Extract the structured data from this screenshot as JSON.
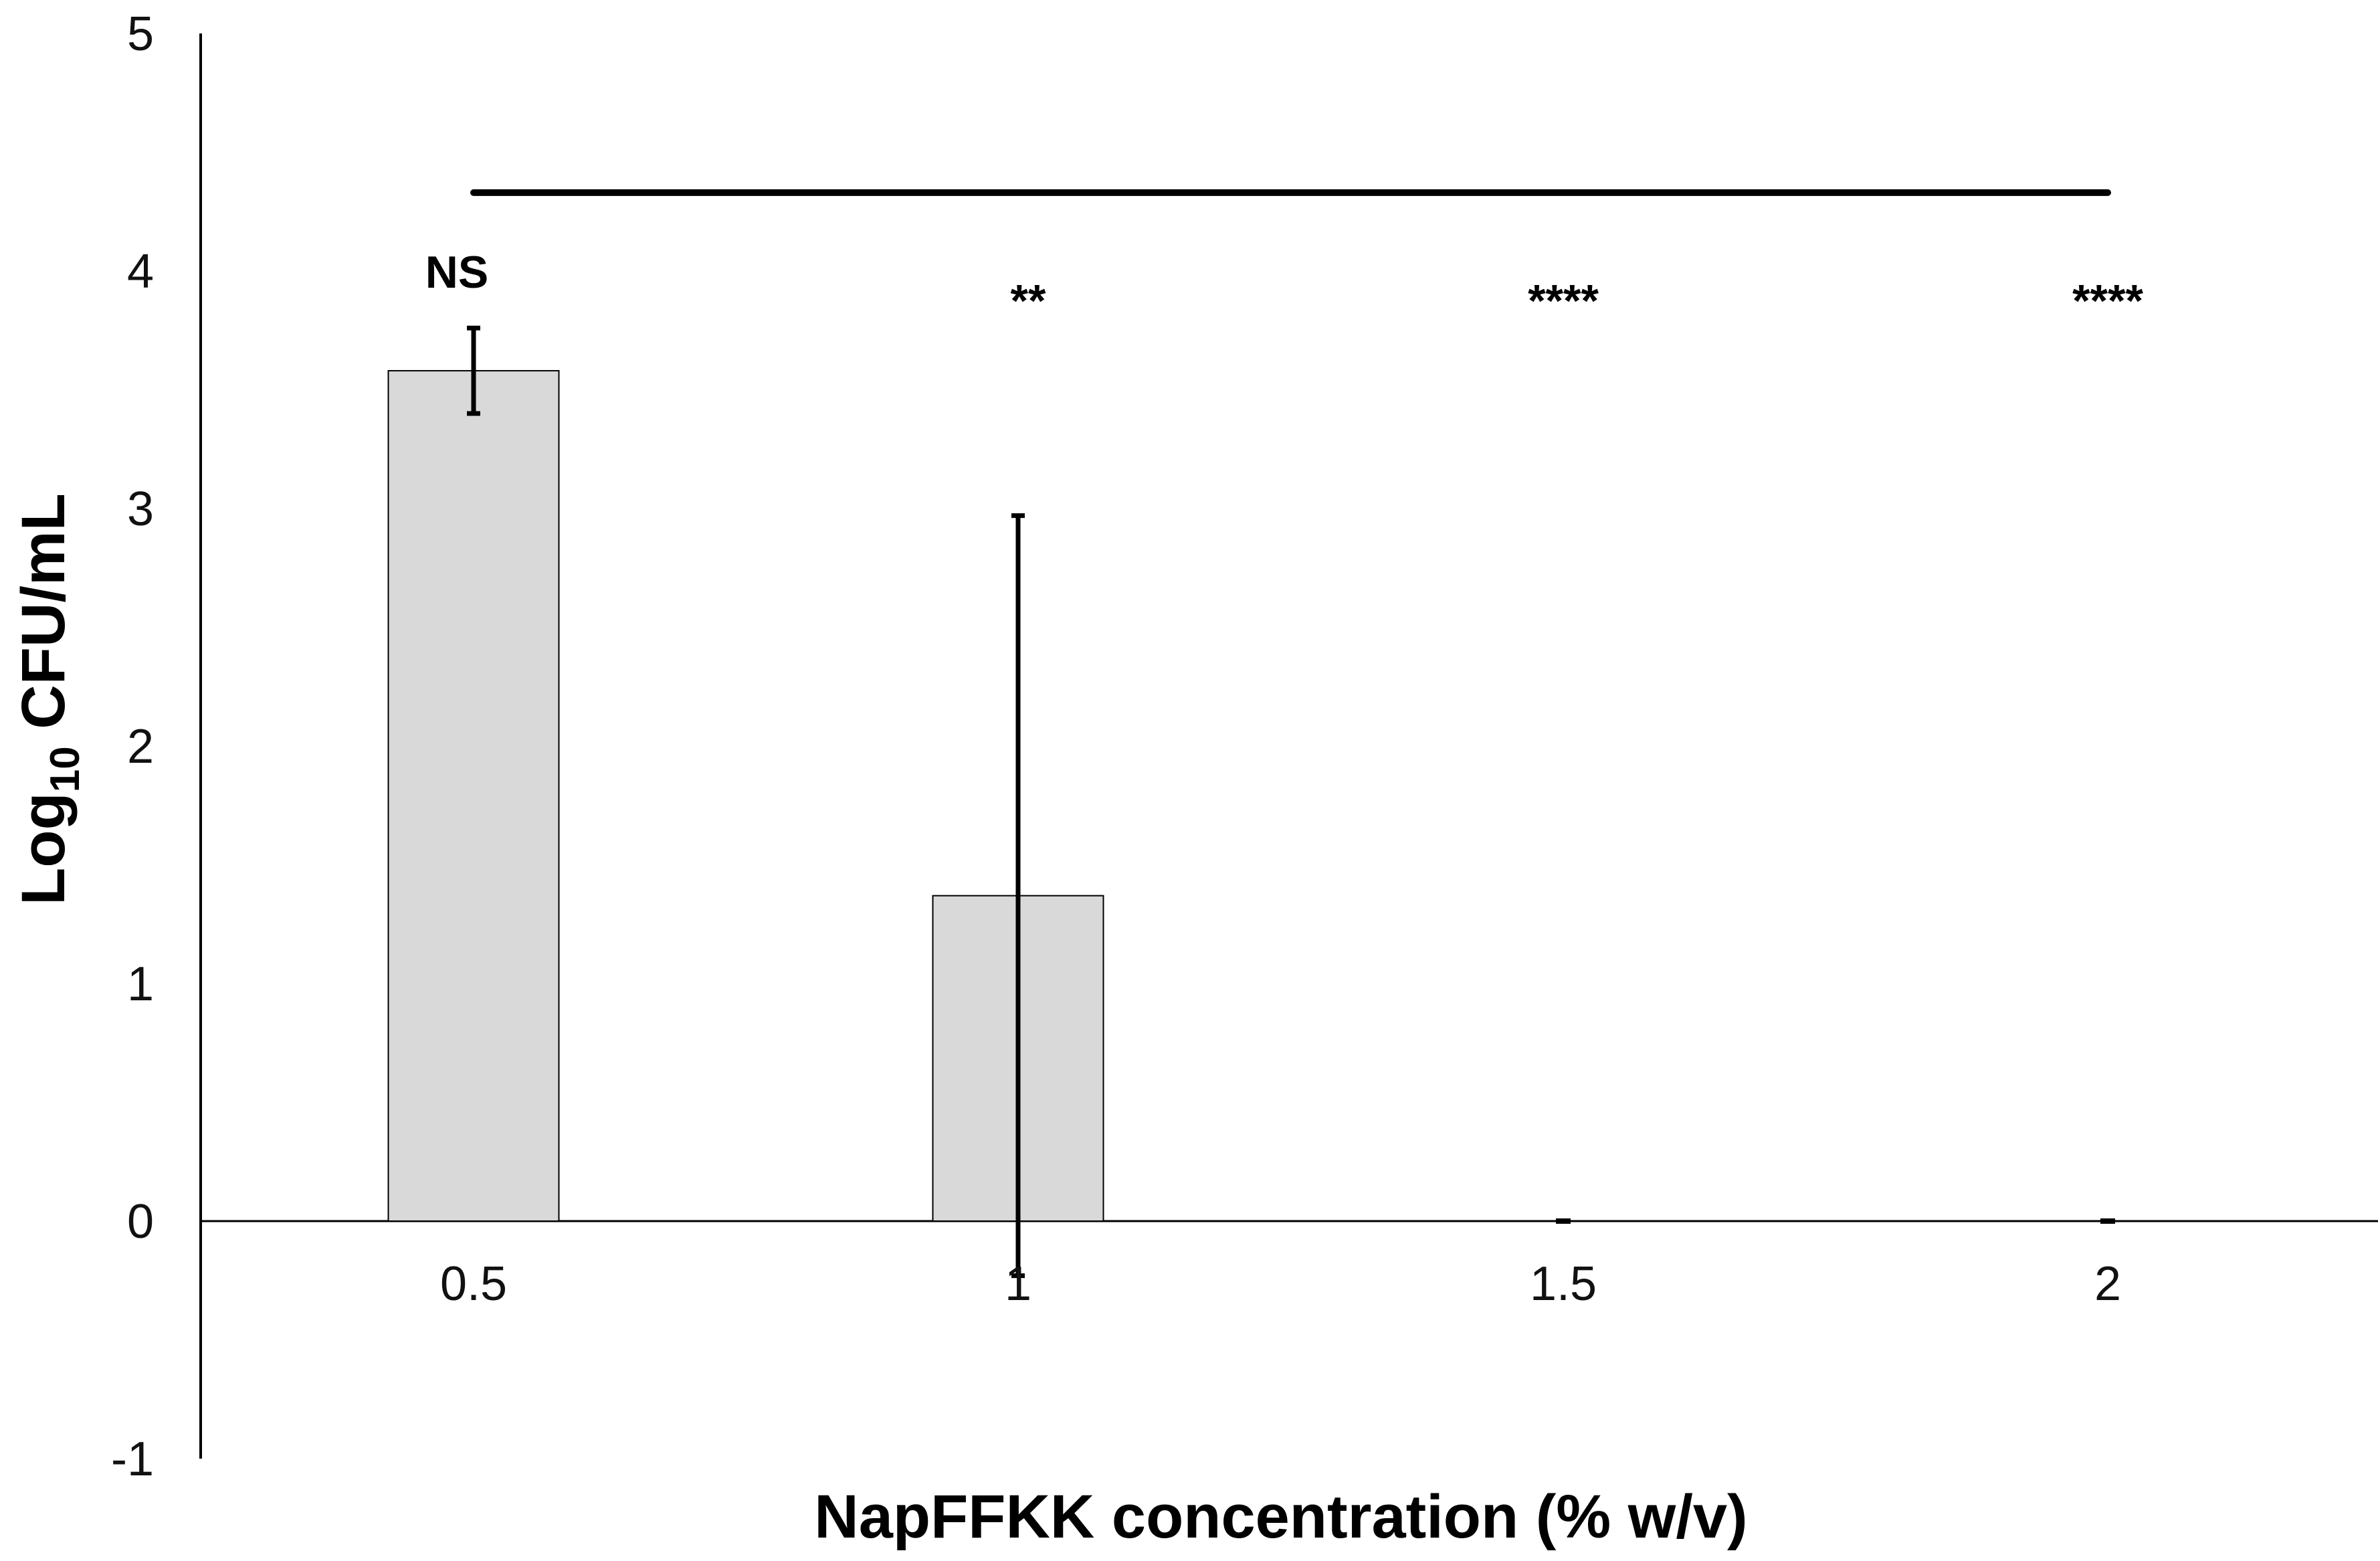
{
  "chart_data": {
    "type": "bar",
    "categories": [
      "0.5",
      "1",
      "1.5",
      "2"
    ],
    "values": [
      3.58,
      1.37,
      0,
      0
    ],
    "error": [
      0.18,
      1.6,
      0,
      0
    ],
    "annotations": [
      "NS",
      "**",
      "****",
      "****"
    ],
    "xlabel": "NapFFKK concentration (% w/v)",
    "ylabel": {
      "base": "Log",
      "subscript": "10",
      "suffix": " CFU/mL"
    },
    "ylim": [
      -1,
      5
    ],
    "yticks": [
      "-1",
      "0",
      "1",
      "2",
      "3",
      "4",
      "5"
    ],
    "reference_line_y": 4.33,
    "grid": false,
    "legend": "none",
    "colors": {
      "bar_fill": "#d9d9d9",
      "bar_stroke": "#000000",
      "error_bar": "#000000"
    }
  }
}
